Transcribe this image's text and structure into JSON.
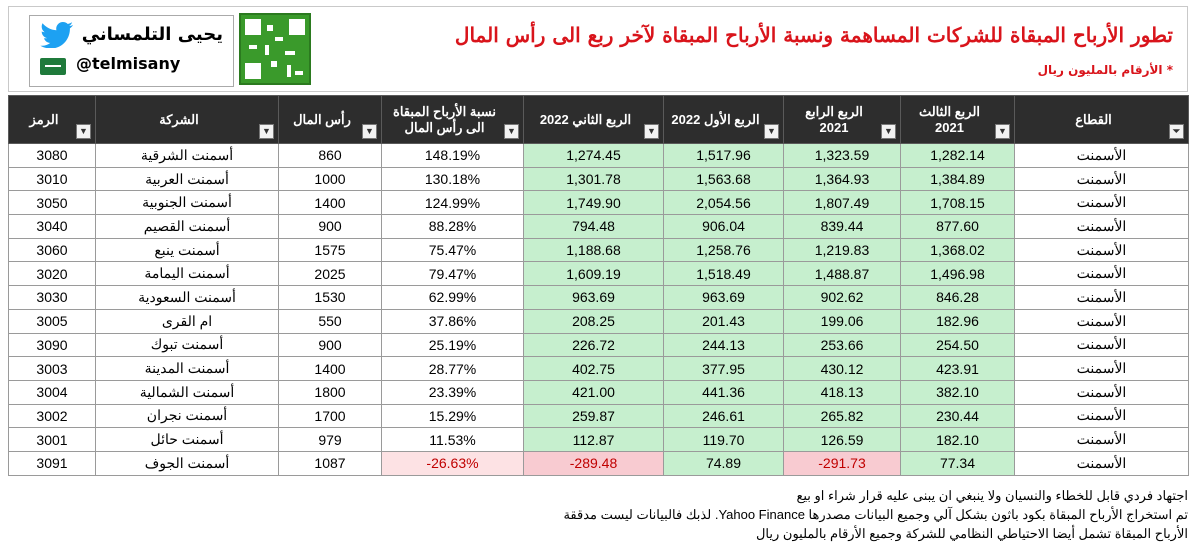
{
  "header": {
    "brand_name": "يحيى التلمساني",
    "handle": "@telmisany",
    "title": "تطور الأرباح المبقاة للشركات المساهمة ونسبة الأرباح المبقاة لآخر ربع الى رأس المال",
    "subtitle": "* الأرقام بالمليون ريال",
    "accent_color": "#d9141b"
  },
  "table": {
    "columns": {
      "symbol": "الرمز",
      "company": "الشركة",
      "capital": "رأس المال",
      "ratio": "نسبة الأرباح المبقاة الى رأس المال",
      "q2_2022": "الربع الثاني 2022",
      "q1_2022": "الربع الأول 2022",
      "q4_2021": "الربع الرابع 2021",
      "q3_2021": "الربع الثالث 2021",
      "sector": "القطاع"
    },
    "rows": [
      {
        "symbol": "3080",
        "company": "أسمنت الشرقية",
        "capital": "860",
        "ratio": "148.19%",
        "q2_2022": "1,274.45",
        "q1_2022": "1,517.96",
        "q4_2021": "1,323.59",
        "q3_2021": "1,282.14",
        "sector": "الأسمنت"
      },
      {
        "symbol": "3010",
        "company": "أسمنت العربية",
        "capital": "1000",
        "ratio": "130.18%",
        "q2_2022": "1,301.78",
        "q1_2022": "1,563.68",
        "q4_2021": "1,364.93",
        "q3_2021": "1,384.89",
        "sector": "الأسمنت"
      },
      {
        "symbol": "3050",
        "company": "أسمنت الجنوبية",
        "capital": "1400",
        "ratio": "124.99%",
        "q2_2022": "1,749.90",
        "q1_2022": "2,054.56",
        "q4_2021": "1,807.49",
        "q3_2021": "1,708.15",
        "sector": "الأسمنت"
      },
      {
        "symbol": "3040",
        "company": "أسمنت القصيم",
        "capital": "900",
        "ratio": "88.28%",
        "q2_2022": "794.48",
        "q1_2022": "906.04",
        "q4_2021": "839.44",
        "q3_2021": "877.60",
        "sector": "الأسمنت"
      },
      {
        "symbol": "3060",
        "company": "أسمنت ينبع",
        "capital": "1575",
        "ratio": "75.47%",
        "q2_2022": "1,188.68",
        "q1_2022": "1,258.76",
        "q4_2021": "1,219.83",
        "q3_2021": "1,368.02",
        "sector": "الأسمنت"
      },
      {
        "symbol": "3020",
        "company": "أسمنت اليمامة",
        "capital": "2025",
        "ratio": "79.47%",
        "q2_2022": "1,609.19",
        "q1_2022": "1,518.49",
        "q4_2021": "1,488.87",
        "q3_2021": "1,496.98",
        "sector": "الأسمنت"
      },
      {
        "symbol": "3030",
        "company": "أسمنت السعودية",
        "capital": "1530",
        "ratio": "62.99%",
        "q2_2022": "963.69",
        "q1_2022": "963.69",
        "q4_2021": "902.62",
        "q3_2021": "846.28",
        "sector": "الأسمنت"
      },
      {
        "symbol": "3005",
        "company": "ام القرى",
        "capital": "550",
        "ratio": "37.86%",
        "q2_2022": "208.25",
        "q1_2022": "201.43",
        "q4_2021": "199.06",
        "q3_2021": "182.96",
        "sector": "الأسمنت"
      },
      {
        "symbol": "3090",
        "company": "أسمنت تبوك",
        "capital": "900",
        "ratio": "25.19%",
        "q2_2022": "226.72",
        "q1_2022": "244.13",
        "q4_2021": "253.66",
        "q3_2021": "254.50",
        "sector": "الأسمنت"
      },
      {
        "symbol": "3003",
        "company": "أسمنت المدينة",
        "capital": "1400",
        "ratio": "28.77%",
        "q2_2022": "402.75",
        "q1_2022": "377.95",
        "q4_2021": "430.12",
        "q3_2021": "423.91",
        "sector": "الأسمنت"
      },
      {
        "symbol": "3004",
        "company": "أسمنت الشمالية",
        "capital": "1800",
        "ratio": "23.39%",
        "q2_2022": "421.00",
        "q1_2022": "441.36",
        "q4_2021": "418.13",
        "q3_2021": "382.10",
        "sector": "الأسمنت"
      },
      {
        "symbol": "3002",
        "company": "أسمنت نجران",
        "capital": "1700",
        "ratio": "15.29%",
        "q2_2022": "259.87",
        "q1_2022": "246.61",
        "q4_2021": "265.82",
        "q3_2021": "230.44",
        "sector": "الأسمنت"
      },
      {
        "symbol": "3001",
        "company": "أسمنت حائل",
        "capital": "979",
        "ratio": "11.53%",
        "q2_2022": "112.87",
        "q1_2022": "119.70",
        "q4_2021": "126.59",
        "q3_2021": "182.10",
        "sector": "الأسمنت"
      },
      {
        "symbol": "3091",
        "company": "أسمنت الجوف",
        "capital": "1087",
        "ratio": "-26.63%",
        "q2_2022": "-289.48",
        "q1_2022": "74.89",
        "q4_2021": "-291.73",
        "q3_2021": "77.34",
        "sector": "الأسمنت"
      }
    ]
  },
  "notes": [
    "اجتهاد فردي قابل للخطاء والنسيان ولا ينبغي ان يبنى عليه قرار شراء او بيع",
    "تم استخراج الأرباح المبقاة بكود باثون بشكل آلي وجميع البيانات مصدرها Yahoo Finance. لذبك فالبيانات ليست مدققة",
    "الأرباح المبقاة تشمل أيضا الاحتياطي النظامي للشركة وجميع الأرقام بالمليون ريال"
  ]
}
